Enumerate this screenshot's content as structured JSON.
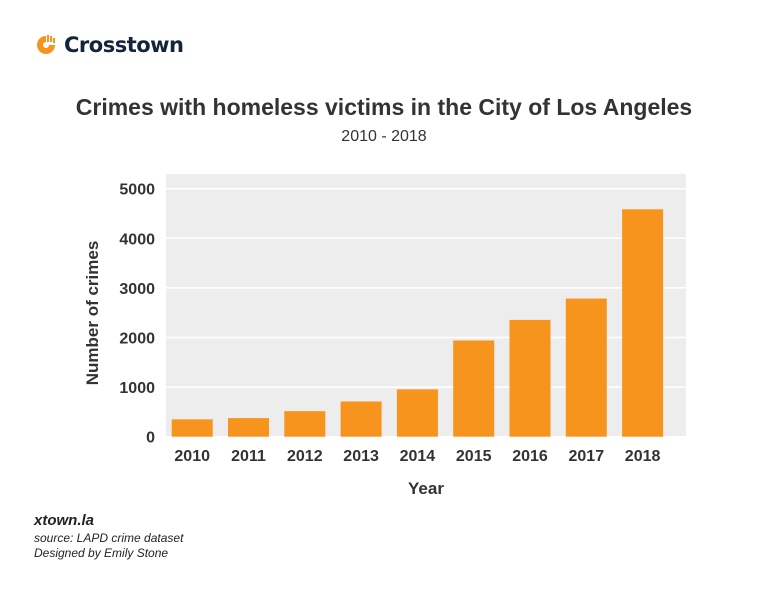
{
  "logo": {
    "text": "Crosstown",
    "color": "#f7941d"
  },
  "chart_data": {
    "type": "bar",
    "title": "Crimes with homeless victims in the City of Los Angeles",
    "subtitle": "2010 - 2018",
    "xlabel": "Year",
    "ylabel": "Number of crimes",
    "categories": [
      "2010",
      "2011",
      "2012",
      "2013",
      "2014",
      "2015",
      "2016",
      "2017",
      "2018"
    ],
    "values": [
      350,
      375,
      515,
      710,
      955,
      1940,
      2355,
      2785,
      4585
    ],
    "ylim": [
      0,
      5000
    ],
    "yticks": [
      "0",
      "1000",
      "2000",
      "3000",
      "4000",
      "5000"
    ],
    "grid": true,
    "bar_color": "#f7941d",
    "background": "#ededed"
  },
  "footer": {
    "site": "xtown.la",
    "source": "source: LAPD crime dataset",
    "credit": "Designed by Emily Stone"
  }
}
